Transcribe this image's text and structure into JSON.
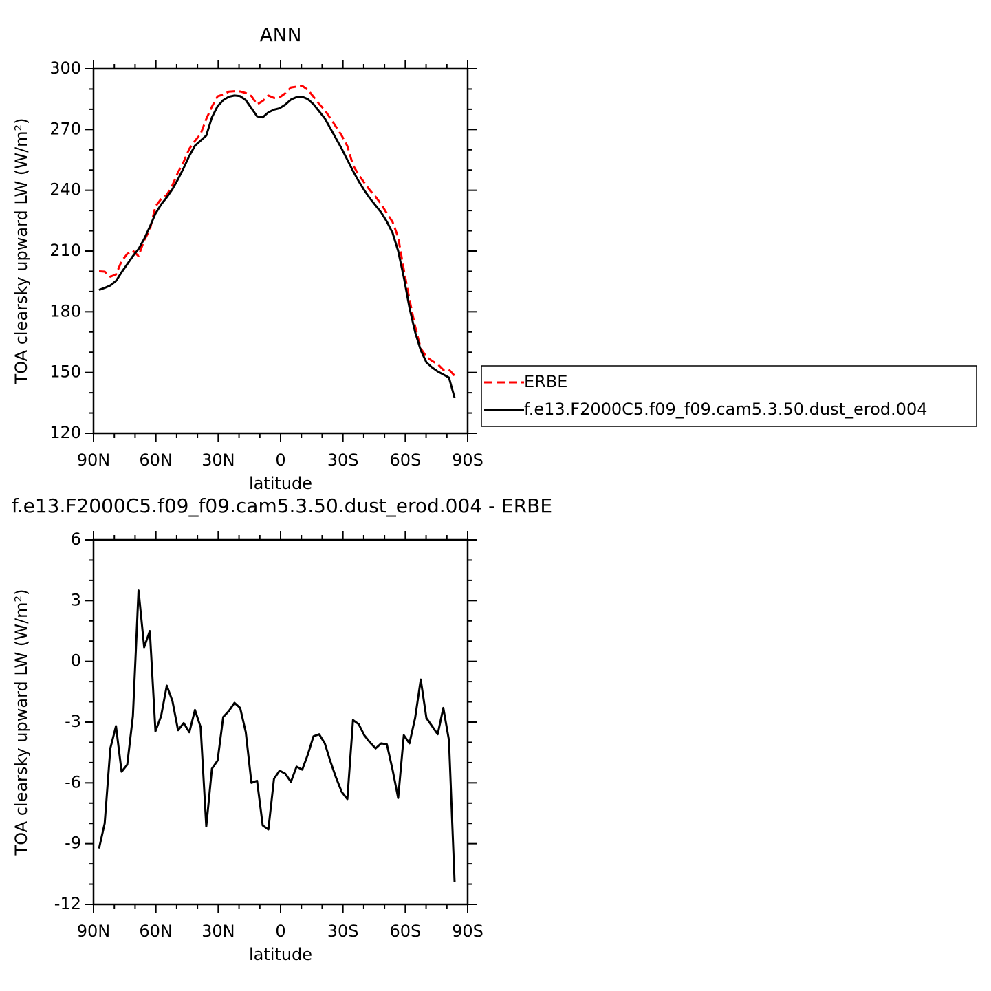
{
  "chart_data": [
    {
      "type": "line",
      "title": "ANN",
      "xlabel": "latitude",
      "ylabel": "TOA clearsky upward LW (W/m²)",
      "x": [
        87.35,
        84.63,
        81.92,
        79.2,
        76.49,
        73.77,
        71.06,
        68.34,
        65.63,
        62.91,
        60.2,
        57.48,
        54.76,
        52.05,
        49.33,
        46.62,
        43.9,
        41.19,
        38.47,
        35.76,
        33.04,
        30.32,
        27.61,
        24.89,
        22.18,
        19.46,
        16.75,
        14.03,
        11.32,
        8.6,
        5.88,
        3.17,
        0.45,
        -2.26,
        -4.98,
        -7.69,
        -10.41,
        -13.12,
        -15.84,
        -18.55,
        -21.27,
        -23.99,
        -26.7,
        -29.42,
        -32.13,
        -34.85,
        -37.56,
        -40.28,
        -42.99,
        -45.71,
        -48.43,
        -51.14,
        -53.86,
        -56.57,
        -59.29,
        -62.0,
        -64.72,
        -67.43,
        -70.15,
        -72.87,
        -75.58,
        -78.29,
        -81.01,
        -83.72
      ],
      "series": [
        {
          "name": "ERBE",
          "color": "#ff0000",
          "style": "dashed",
          "values": [
            200.0,
            199.8,
            197.3,
            198.4,
            205.0,
            208.6,
            210.2,
            207.5,
            215.3,
            220.5,
            232.0,
            235.7,
            237.7,
            242.5,
            248.9,
            254.1,
            260.5,
            264.4,
            267.8,
            275.2,
            281.3,
            286.4,
            287.3,
            288.7,
            288.9,
            288.8,
            288.0,
            286.5,
            282.4,
            284.1,
            286.8,
            285.6,
            285.9,
            287.9,
            290.8,
            291.2,
            291.6,
            289.6,
            286.2,
            282.6,
            279.6,
            275.5,
            271.3,
            267.0,
            261.8,
            252.4,
            247.6,
            243.7,
            240.0,
            236.8,
            233.1,
            228.6,
            224.4,
            216.8,
            200.7,
            186.1,
            172.8,
            161.9,
            157.8,
            155.7,
            154.1,
            151.3,
            151.4,
            148.4
          ]
        },
        {
          "name": "f.e13.F2000C5.f09_f09.cam5.3.50.dust_erod.004",
          "color": "#000000",
          "style": "solid",
          "values": [
            190.8,
            191.8,
            193.0,
            195.2,
            199.5,
            203.5,
            207.5,
            211.0,
            216.0,
            222.0,
            228.5,
            233.0,
            236.5,
            240.5,
            245.5,
            251.0,
            257.0,
            262.0,
            264.5,
            267.0,
            276.0,
            281.5,
            284.5,
            286.2,
            286.8,
            286.5,
            284.5,
            280.5,
            276.5,
            276.0,
            278.5,
            279.8,
            280.5,
            282.3,
            284.8,
            286.0,
            286.2,
            285.0,
            282.5,
            279.0,
            275.5,
            270.5,
            265.5,
            260.5,
            255.0,
            249.5,
            244.5,
            240.0,
            236.0,
            232.5,
            229.0,
            224.5,
            219.0,
            210.0,
            197.0,
            182.0,
            170.0,
            161.0,
            155.0,
            152.5,
            150.5,
            149.0,
            147.5,
            137.5
          ]
        }
      ],
      "xlim": [
        90,
        -90
      ],
      "xticks": [
        {
          "value": 90,
          "label": "90N"
        },
        {
          "value": 60,
          "label": "60N"
        },
        {
          "value": 30,
          "label": "30N"
        },
        0,
        {
          "value": -30,
          "label": "30S"
        },
        {
          "value": -60,
          "label": "60S"
        },
        {
          "value": -90,
          "label": "90S"
        }
      ],
      "ylim": [
        120,
        300
      ],
      "yticks": [
        120,
        150,
        180,
        210,
        240,
        270,
        300
      ],
      "legend": "right"
    },
    {
      "type": "line",
      "title": "f.e13.F2000C5.f09_f09.cam5.3.50.dust_erod.004 - ERBE",
      "xlabel": "latitude",
      "ylabel": "TOA clearsky upward LW (W/m²)",
      "x": [
        87.35,
        84.63,
        81.92,
        79.2,
        76.49,
        73.77,
        71.06,
        68.34,
        65.63,
        62.91,
        60.2,
        57.48,
        54.76,
        52.05,
        49.33,
        46.62,
        43.9,
        41.19,
        38.47,
        35.76,
        33.04,
        30.32,
        27.61,
        24.89,
        22.18,
        19.46,
        16.75,
        14.03,
        11.32,
        8.6,
        5.88,
        3.17,
        0.45,
        -2.26,
        -4.98,
        -7.69,
        -10.41,
        -13.12,
        -15.84,
        -18.55,
        -21.27,
        -23.99,
        -26.7,
        -29.42,
        -32.13,
        -34.85,
        -37.56,
        -40.28,
        -42.99,
        -45.71,
        -48.43,
        -51.14,
        -53.86,
        -56.57,
        -59.29,
        -62.0,
        -64.72,
        -67.43,
        -70.15,
        -72.87,
        -75.58,
        -78.29,
        -81.01,
        -83.72
      ],
      "values": [
        -9.24,
        -8.0,
        -4.3,
        -3.2,
        -5.45,
        -5.1,
        -2.7,
        3.5,
        0.7,
        1.5,
        -3.45,
        -2.7,
        -1.2,
        -1.95,
        -3.4,
        -3.05,
        -3.5,
        -2.4,
        -3.25,
        -8.15,
        -5.3,
        -4.9,
        -2.75,
        -2.45,
        -2.05,
        -2.3,
        -3.5,
        -6.0,
        -5.9,
        -8.1,
        -8.3,
        -5.8,
        -5.4,
        -5.55,
        -5.95,
        -5.2,
        -5.35,
        -4.6,
        -3.7,
        -3.6,
        -4.05,
        -4.95,
        -5.75,
        -6.45,
        -6.8,
        -2.9,
        -3.1,
        -3.65,
        -4.0,
        -4.3,
        -4.05,
        -4.1,
        -5.35,
        -6.75,
        -3.65,
        -4.05,
        -2.8,
        -0.9,
        -2.8,
        -3.2,
        -3.6,
        -2.3,
        -3.9,
        -10.9
      ],
      "color": "#000000",
      "xlim": [
        90,
        -90
      ],
      "xticks": [
        {
          "value": 90,
          "label": "90N"
        },
        {
          "value": 60,
          "label": "60N"
        },
        {
          "value": 30,
          "label": "30N"
        },
        0,
        {
          "value": -30,
          "label": "30S"
        },
        {
          "value": -60,
          "label": "60S"
        },
        {
          "value": -90,
          "label": "90S"
        }
      ],
      "ylim": [
        -12,
        6
      ],
      "yticks": [
        -12,
        -9,
        -6,
        -3,
        0,
        3,
        6
      ]
    }
  ]
}
